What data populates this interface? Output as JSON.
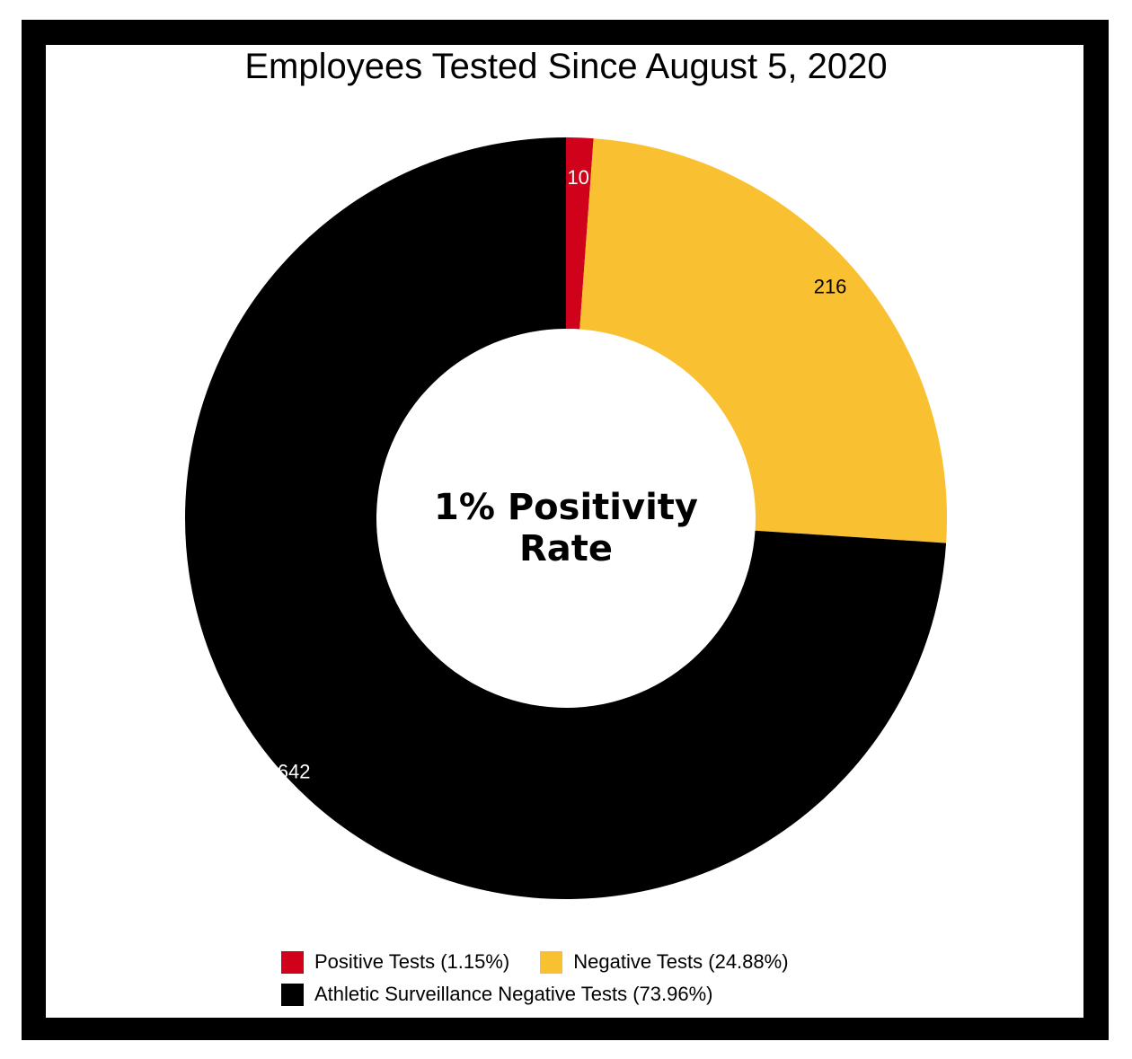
{
  "chart_data": {
    "type": "pie",
    "title": "Employees Tested Since August 5, 2020",
    "center_label": [
      "1% Positivity",
      "Rate"
    ],
    "legend_placement": "bottom",
    "series": [
      {
        "name": "Positive Tests (1.15%)",
        "value": 10,
        "color": "#d0021b",
        "label_color": "#ffffff"
      },
      {
        "name": "Negative Tests (24.88%)",
        "value": 216,
        "color": "#f9c132",
        "label_color": "#000000"
      },
      {
        "name": "Athletic Surveillance Negative Tests (73.96%)",
        "value": 642,
        "color": "#000000",
        "label_color": "#ffffff"
      }
    ]
  }
}
